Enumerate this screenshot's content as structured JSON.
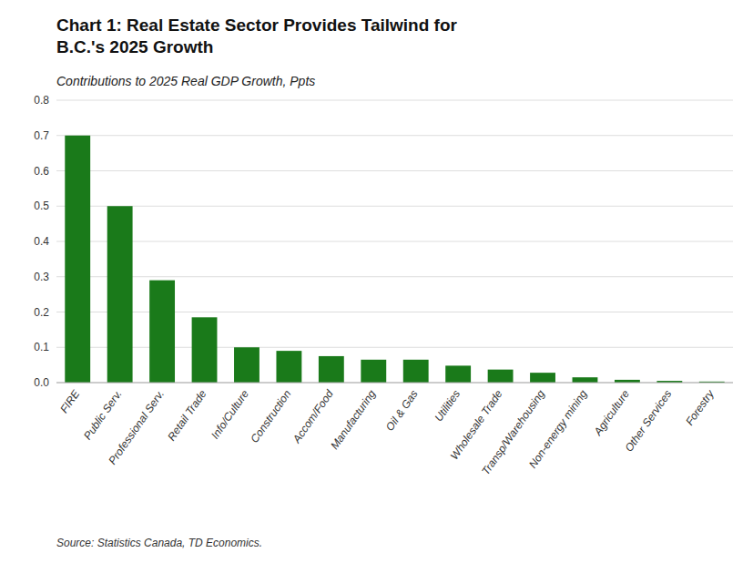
{
  "chart_data": {
    "type": "bar",
    "title": "Chart 1: Real Estate Sector Provides Tailwind for\nB.C.'s 2025 Growth",
    "subtitle": "Contributions to 2025 Real GDP Growth, Ppts",
    "source": "Source: Statistics Canada, TD Economics.",
    "categories": [
      "FIRE",
      "Public Serv.",
      "Professional Serv.",
      "Retail Trade",
      "Info/Culture",
      "Construction",
      "Accom/Food",
      "Manufacturing",
      "Oil & Gas",
      "Utilities",
      "Wholesale Trade",
      "Transp/Warehousing",
      "Non-energy mining",
      "Agriculture",
      "Other Services",
      "Forestry"
    ],
    "values": [
      0.7,
      0.5,
      0.29,
      0.185,
      0.1,
      0.09,
      0.075,
      0.065,
      0.065,
      0.048,
      0.037,
      0.028,
      0.015,
      0.008,
      0.005,
      0.003
    ],
    "color": "#1a7a1a",
    "ylim": [
      0,
      0.8
    ],
    "yticks": [
      {
        "value": 0.0,
        "label": "0.0"
      },
      0.1,
      0.2,
      0.3,
      0.4,
      0.5,
      0.6,
      0.7,
      0.8
    ],
    "grid": true
  }
}
